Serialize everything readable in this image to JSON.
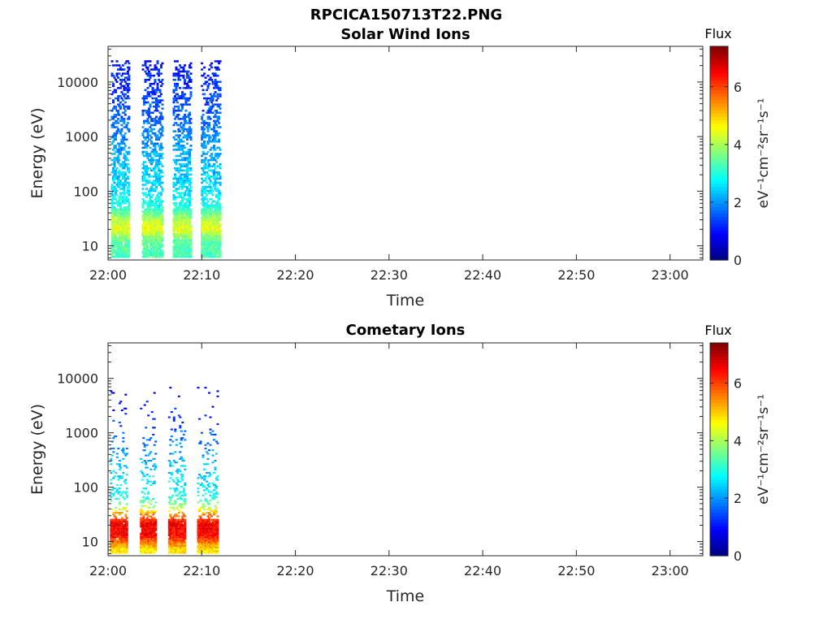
{
  "figure": {
    "title": "RPCICA150713T22.PNG"
  },
  "chart_data": [
    {
      "type": "heatmap",
      "title": "Solar Wind Ions",
      "xlabel": "Time",
      "ylabel": "Energy (eV)",
      "x_ticks": [
        "22:00",
        "22:10",
        "22:20",
        "22:30",
        "22:40",
        "22:50",
        "23:00"
      ],
      "xlim_minutes": [
        0,
        63.5
      ],
      "y_scale": "log",
      "y_ticks": [
        "10",
        "100",
        "1000",
        "10000"
      ],
      "ylim": [
        5.5,
        45000
      ],
      "colorbar": {
        "title": "Flux",
        "label": "eV⁻¹cm⁻²sr⁻¹s⁻¹",
        "ticks": [
          "0",
          "2",
          "4",
          "6"
        ],
        "range": [
          0,
          7.4
        ],
        "colormap": "jet"
      },
      "bursts_minutes": [
        [
          0.3,
          2.2
        ],
        [
          3.6,
          5.7
        ],
        [
          6.9,
          8.8
        ],
        [
          9.9,
          11.9
        ]
      ],
      "profile_log_flux": [
        {
          "energy": 7,
          "flux": 3.3
        },
        {
          "energy": 12,
          "flux": 3.5
        },
        {
          "energy": 20,
          "flux": 4.5
        },
        {
          "energy": 30,
          "flux": 4.0
        },
        {
          "energy": 50,
          "flux": 3.0
        },
        {
          "energy": 100,
          "flux": 2.6
        },
        {
          "energy": 300,
          "flux": 2.3
        },
        {
          "energy": 1000,
          "flux": 1.9
        },
        {
          "energy": 3000,
          "flux": 1.5
        },
        {
          "energy": 10000,
          "flux": 1.2
        },
        {
          "energy": 25000,
          "flux": 1.0
        }
      ]
    },
    {
      "type": "heatmap",
      "title": "Cometary Ions",
      "xlabel": "Time",
      "ylabel": "Energy (eV)",
      "x_ticks": [
        "22:00",
        "22:10",
        "22:20",
        "22:30",
        "22:40",
        "22:50",
        "23:00"
      ],
      "xlim_minutes": [
        0,
        63.5
      ],
      "y_scale": "log",
      "y_ticks": [
        "10",
        "100",
        "1000",
        "10000"
      ],
      "ylim": [
        5.5,
        45000
      ],
      "colorbar": {
        "title": "Flux",
        "label": "eV⁻¹cm⁻²sr⁻¹s⁻¹",
        "ticks": [
          "0",
          "2",
          "4",
          "6"
        ],
        "range": [
          0,
          7.4
        ],
        "colormap": "jet"
      },
      "bursts_minutes": [
        [
          0.2,
          2.0
        ],
        [
          3.4,
          5.0
        ],
        [
          6.4,
          8.2
        ],
        [
          9.5,
          11.6
        ]
      ],
      "profile_log_flux": [
        {
          "energy": 7,
          "flux": 4.8
        },
        {
          "energy": 12,
          "flux": 6.4
        },
        {
          "energy": 20,
          "flux": 6.6
        },
        {
          "energy": 30,
          "flux": 5.5
        },
        {
          "energy": 40,
          "flux": 4.2
        },
        {
          "energy": 60,
          "flux": 3.0
        },
        {
          "energy": 100,
          "flux": 2.7
        },
        {
          "energy": 250,
          "flux": 2.4
        },
        {
          "energy": 600,
          "flux": 1.8
        },
        {
          "energy": 3000,
          "flux": 1.0
        },
        {
          "energy": 7000,
          "flux": 0.8
        }
      ]
    }
  ]
}
